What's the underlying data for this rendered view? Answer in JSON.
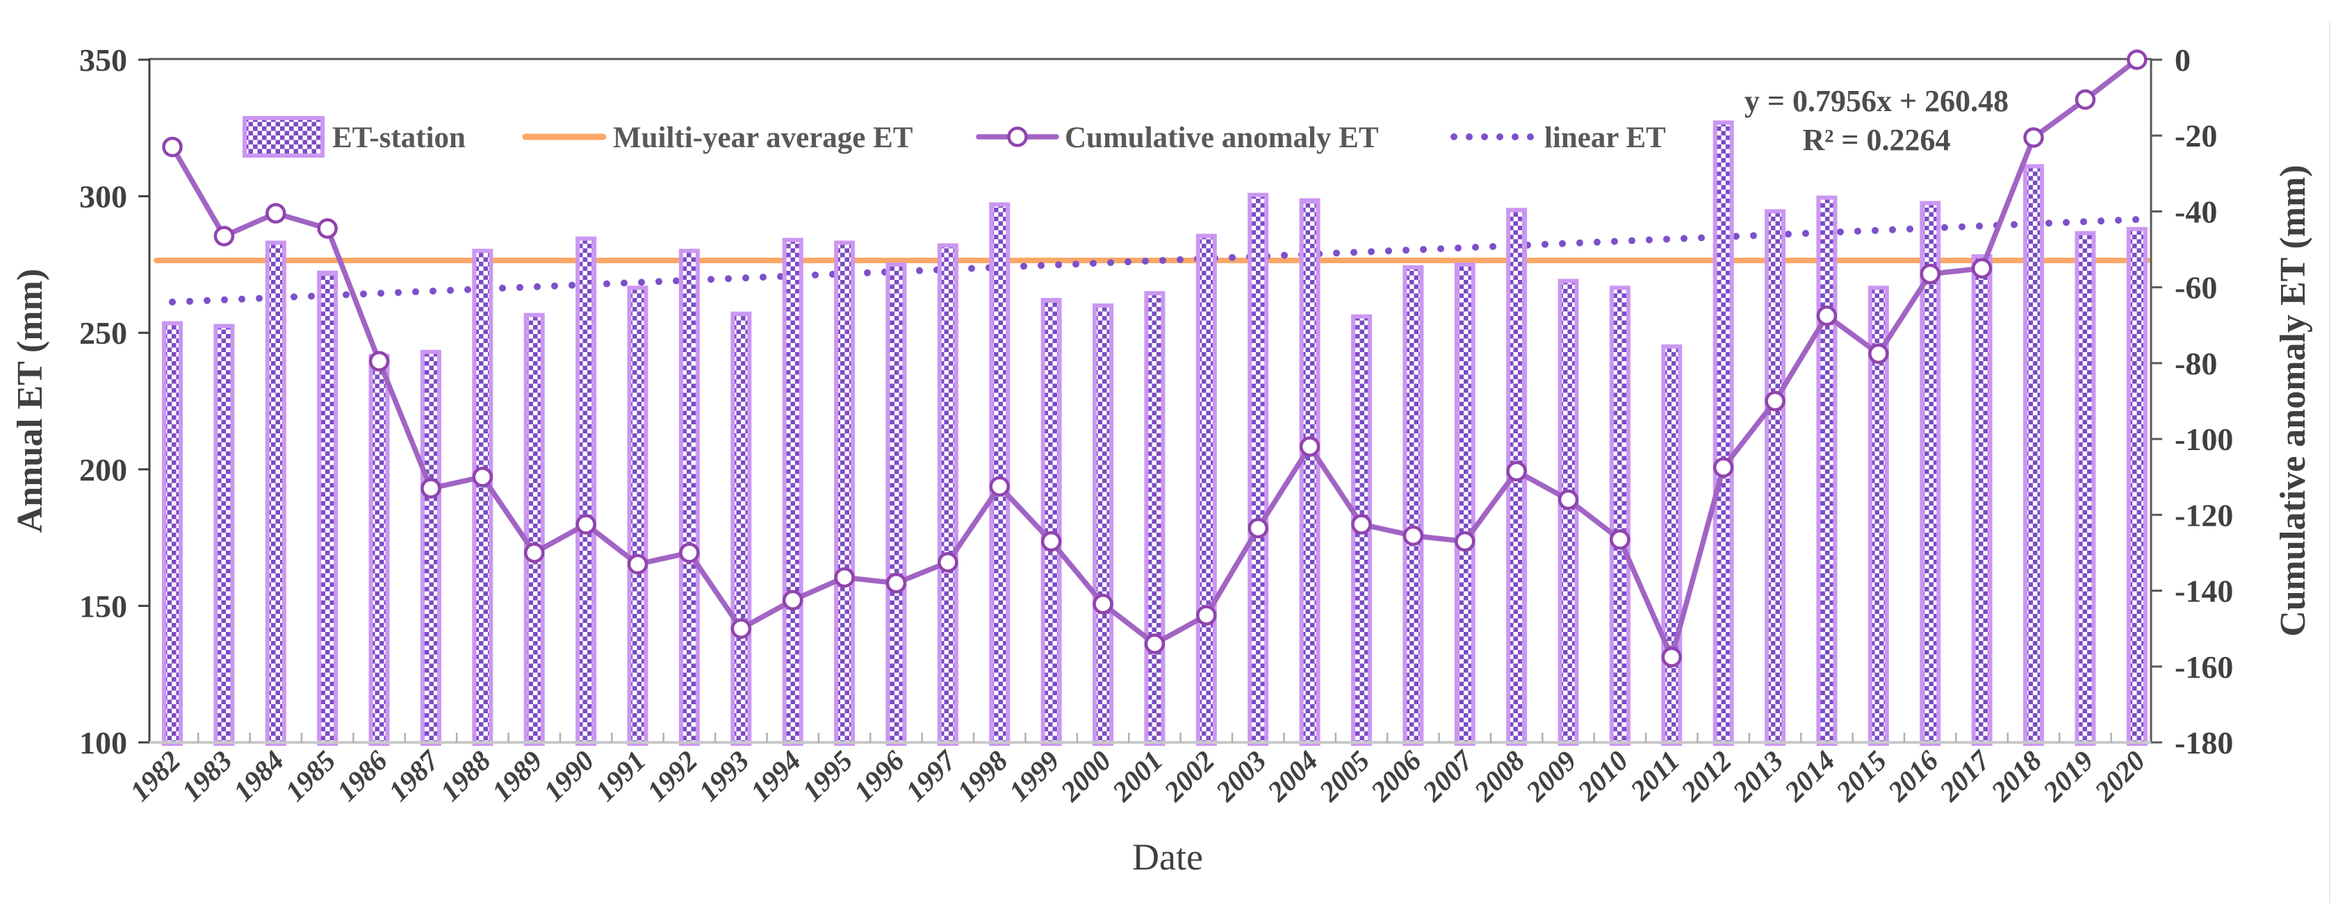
{
  "chart_data": {
    "type": "combo-bar-line",
    "title": "",
    "xlabel": "Date",
    "ylabel_left": "Annual ET (mm)",
    "ylabel_right": "Cumulative anomaly ET (mm)",
    "ylim_left": [
      100,
      350
    ],
    "ylim_right": [
      -180,
      0
    ],
    "yticks_left": [
      350,
      300,
      250,
      200,
      150,
      100
    ],
    "yticks_right": [
      0,
      -20,
      -40,
      -60,
      -80,
      -100,
      -120,
      -140,
      -160,
      -180
    ],
    "grid": false,
    "legend_position": "top-inside",
    "categories": [
      1982,
      1983,
      1984,
      1985,
      1986,
      1987,
      1988,
      1989,
      1990,
      1991,
      1992,
      1993,
      1994,
      1995,
      1996,
      1997,
      1998,
      1999,
      2000,
      2001,
      2002,
      2003,
      2004,
      2005,
      2006,
      2007,
      2008,
      2009,
      2010,
      2011,
      2012,
      2013,
      2014,
      2015,
      2016,
      2017,
      2018,
      2019,
      2020
    ],
    "series": [
      {
        "name": "ET-station",
        "type": "bar",
        "axis": "left",
        "values": [
          253.5,
          252.5,
          283,
          272,
          241.5,
          243,
          280,
          256.5,
          284.5,
          266.5,
          280,
          257,
          284,
          283,
          275,
          282,
          297,
          262,
          260,
          264.5,
          285.5,
          300.5,
          298.5,
          256,
          274,
          275,
          295,
          269,
          266.5,
          245,
          327,
          294.5,
          299.5,
          266.5,
          297.5,
          278,
          311,
          286.5,
          288
        ]
      },
      {
        "name": "Muilti-year average ET",
        "type": "hline",
        "axis": "left",
        "value": 276.5
      },
      {
        "name": "Cumulative anomaly ET",
        "type": "line-marker",
        "axis": "right",
        "values": [
          -23,
          -46.5,
          -40.5,
          -44.5,
          -79.5,
          -113,
          -110,
          -130,
          -122.5,
          -133,
          -130,
          -150,
          -142.5,
          -136.5,
          -138,
          -132.5,
          -112.5,
          -127,
          -143.5,
          -154,
          -146.5,
          -123.5,
          -102,
          -122.5,
          -125.5,
          -127,
          -108.5,
          -116,
          -126.5,
          -157.5,
          -107.5,
          -90,
          -67.5,
          -77.5,
          -56.5,
          -55,
          -20.5,
          -10.5,
          0
        ]
      },
      {
        "name": "linear ET",
        "type": "dotted-trend",
        "axis": "left",
        "slope": 0.7956,
        "intercept": 260.48
      }
    ],
    "annotation": {
      "line1": "y = 0.7956x + 260.48",
      "line2": "R² = 0.2264"
    },
    "legend": [
      {
        "label": "ET-station",
        "glyph": "bar-swatch"
      },
      {
        "label": "Muilti-year average ET",
        "glyph": "orange-line"
      },
      {
        "label": "Cumulative anomaly ET",
        "glyph": "line-with-marker"
      },
      {
        "label": "linear ET",
        "glyph": "dotted-line"
      }
    ],
    "colors": {
      "bar_border": "#cb97f2",
      "bar_check": "#7c4bc4",
      "bar_check_bg": "#ffffff",
      "average_line": "#fba767",
      "cumulative_line": "#a164c4",
      "cumulative_marker_ring": "#8f44ad",
      "cumulative_marker_fill": "#ffffff",
      "trend_dots": "#7c50c9",
      "axis_dark": "#404040",
      "frame_gray": "#595959",
      "bottom_spine": "#c9c9c9",
      "minor_tick": "#b0b0b0",
      "text_gray": "#595959"
    }
  }
}
